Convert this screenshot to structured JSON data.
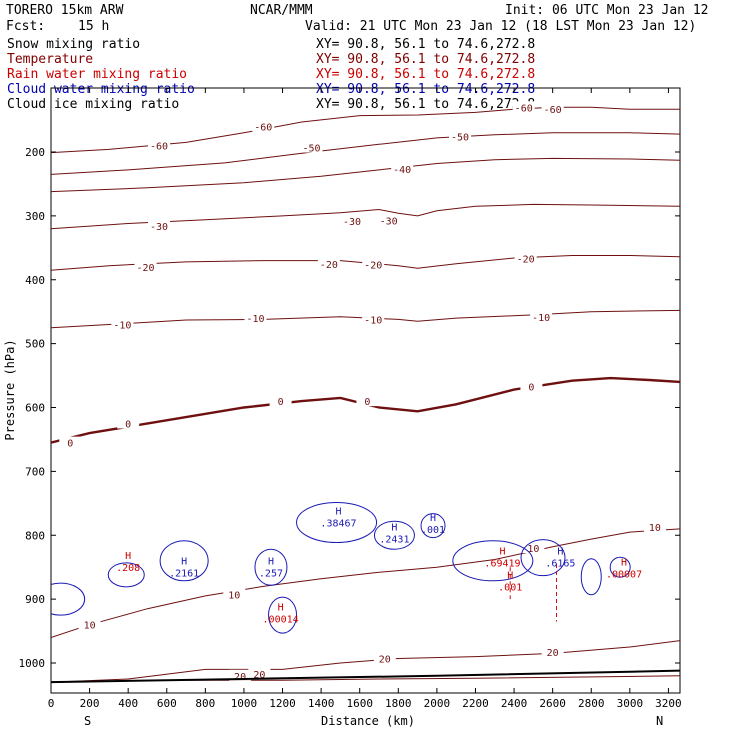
{
  "header": {
    "model": "TORERO  15km ARW",
    "center": "NCAR/MMM",
    "init": "Init: 06 UTC Mon 23 Jan 12",
    "fcst_label": "Fcst:",
    "fcst_value": "15 h",
    "valid": "Valid: 21 UTC Mon 23 Jan 12 (18 LST Mon 23 Jan 12)",
    "cross_section": "XY=  90.8, 56.1 to  74.6,272.8"
  },
  "legend": [
    {
      "name": "Snow mixing ratio",
      "color": "#000000"
    },
    {
      "name": "Temperature",
      "color": "#800000"
    },
    {
      "name": "Rain water mixing ratio",
      "color": "#cc0000"
    },
    {
      "name": "Cloud water mixing ratio",
      "color": "#0000b0"
    },
    {
      "name": "Cloud ice mixing ratio",
      "color": "#000000"
    }
  ],
  "colors": {
    "temperature": "#6e1010",
    "rain": "#d01010",
    "cloud": "#1a1ab4",
    "axis": "#000000"
  },
  "chart_data": {
    "type": "contour-cross-section",
    "title": "TORERO 15km ARW cross section",
    "xlabel": "Distance (km)",
    "ylabel": "Pressure (hPa)",
    "xlim": [
      0,
      3260
    ],
    "ylim": [
      1050,
      100
    ],
    "xticks": [
      0,
      200,
      400,
      600,
      800,
      1000,
      1200,
      1400,
      1600,
      1800,
      2000,
      2200,
      2400,
      2600,
      2800,
      3000,
      3200
    ],
    "yticks": [
      200,
      300,
      400,
      500,
      600,
      700,
      800,
      900,
      1000
    ],
    "x_end_labels": {
      "left": "S",
      "right": "N"
    },
    "temperature_isotherms": [
      {
        "value": -60,
        "points": [
          [
            0,
            201
          ],
          [
            300,
            196
          ],
          [
            700,
            185
          ],
          [
            1000,
            170
          ],
          [
            1300,
            153
          ],
          [
            1600,
            143
          ],
          [
            1900,
            142
          ],
          [
            2200,
            138
          ],
          [
            2400,
            133
          ],
          [
            2600,
            130
          ],
          [
            2800,
            130
          ],
          [
            3000,
            133
          ],
          [
            3260,
            133
          ]
        ],
        "labels": [
          [
            560,
            190,
            "-60"
          ],
          [
            1100,
            160,
            "-60"
          ],
          [
            2450,
            130,
            "-60"
          ],
          [
            2600,
            133,
            "-60"
          ]
        ]
      },
      {
        "value": -50,
        "points": [
          [
            0,
            235
          ],
          [
            400,
            228
          ],
          [
            900,
            217
          ],
          [
            1300,
            202
          ],
          [
            1700,
            188
          ],
          [
            2000,
            178
          ],
          [
            2300,
            173
          ],
          [
            2600,
            170
          ],
          [
            3000,
            170
          ],
          [
            3260,
            172
          ]
        ],
        "labels": [
          [
            1350,
            193,
            "-50"
          ],
          [
            2120,
            176,
            "-50"
          ]
        ]
      },
      {
        "value": -40,
        "points": [
          [
            0,
            262
          ],
          [
            500,
            256
          ],
          [
            1000,
            248
          ],
          [
            1400,
            238
          ],
          [
            1700,
            228
          ],
          [
            2000,
            218
          ],
          [
            2300,
            212
          ],
          [
            2600,
            210
          ],
          [
            3000,
            211
          ],
          [
            3260,
            213
          ]
        ],
        "labels": [
          [
            1820,
            227,
            "-40"
          ]
        ]
      },
      {
        "value": -30,
        "points": [
          [
            0,
            320
          ],
          [
            400,
            312
          ],
          [
            800,
            306
          ],
          [
            1200,
            300
          ],
          [
            1500,
            295
          ],
          [
            1700,
            290
          ],
          [
            1800,
            296
          ],
          [
            1900,
            300
          ],
          [
            2000,
            292
          ],
          [
            2200,
            285
          ],
          [
            2500,
            282
          ],
          [
            2800,
            283
          ],
          [
            3260,
            285
          ]
        ],
        "labels": [
          [
            560,
            316,
            "-30"
          ],
          [
            1560,
            308,
            "-30"
          ],
          [
            1750,
            307,
            "-30"
          ]
        ]
      },
      {
        "value": -20,
        "points": [
          [
            0,
            385
          ],
          [
            300,
            378
          ],
          [
            700,
            372
          ],
          [
            1100,
            370
          ],
          [
            1500,
            370
          ],
          [
            1800,
            378
          ],
          [
            1900,
            382
          ],
          [
            2100,
            375
          ],
          [
            2400,
            366
          ],
          [
            2700,
            362
          ],
          [
            3000,
            362
          ],
          [
            3260,
            364
          ]
        ],
        "labels": [
          [
            490,
            380,
            "-20"
          ],
          [
            1440,
            375,
            "-20"
          ],
          [
            1670,
            376,
            "-20"
          ],
          [
            2460,
            367,
            "-20"
          ]
        ]
      },
      {
        "value": -10,
        "points": [
          [
            0,
            475
          ],
          [
            300,
            470
          ],
          [
            700,
            463
          ],
          [
            1100,
            462
          ],
          [
            1500,
            458
          ],
          [
            1800,
            462
          ],
          [
            1900,
            465
          ],
          [
            2100,
            460
          ],
          [
            2500,
            455
          ],
          [
            2800,
            450
          ],
          [
            3260,
            448
          ]
        ],
        "labels": [
          [
            370,
            470,
            "-10"
          ],
          [
            1060,
            460,
            "-10"
          ],
          [
            1670,
            462,
            "-10"
          ],
          [
            2540,
            458,
            "-10"
          ]
        ]
      },
      {
        "value": 0,
        "bold": true,
        "points": [
          [
            0,
            655
          ],
          [
            200,
            640
          ],
          [
            400,
            630
          ],
          [
            700,
            615
          ],
          [
            1000,
            600
          ],
          [
            1300,
            590
          ],
          [
            1500,
            585
          ],
          [
            1700,
            600
          ],
          [
            1900,
            606
          ],
          [
            2100,
            595
          ],
          [
            2400,
            572
          ],
          [
            2700,
            558
          ],
          [
            2900,
            554
          ],
          [
            3100,
            557
          ],
          [
            3260,
            560
          ]
        ],
        "labels": [
          [
            100,
            655,
            "0"
          ],
          [
            400,
            625,
            "0"
          ],
          [
            1190,
            590,
            "0"
          ],
          [
            1640,
            590,
            "0"
          ],
          [
            2490,
            567,
            "0"
          ]
        ]
      },
      {
        "value": 10,
        "points": [
          [
            0,
            960
          ],
          [
            200,
            940
          ],
          [
            500,
            915
          ],
          [
            800,
            895
          ],
          [
            1100,
            880
          ],
          [
            1400,
            868
          ],
          [
            1700,
            858
          ],
          [
            2000,
            850
          ],
          [
            2300,
            838
          ],
          [
            2600,
            818
          ],
          [
            2800,
            806
          ],
          [
            3000,
            795
          ],
          [
            3260,
            790
          ]
        ],
        "labels": [
          [
            200,
            940,
            "10"
          ],
          [
            950,
            893,
            "10"
          ],
          [
            2500,
            820,
            "10"
          ],
          [
            3130,
            787,
            "10"
          ]
        ]
      },
      {
        "value": 20,
        "points": [
          [
            0,
            1030
          ],
          [
            400,
            1025
          ],
          [
            800,
            1010
          ],
          [
            1200,
            1010
          ],
          [
            1500,
            1000
          ],
          [
            1800,
            993
          ],
          [
            2200,
            990
          ],
          [
            2600,
            985
          ],
          [
            3000,
            975
          ],
          [
            3260,
            965
          ]
        ],
        "labels": [
          [
            1730,
            993,
            "20"
          ],
          [
            2600,
            983,
            "20"
          ]
        ]
      },
      {
        "value": 20,
        "points": [
          [
            700,
            1027
          ],
          [
            1200,
            1027
          ],
          [
            1700,
            1025
          ],
          [
            2200,
            1024
          ],
          [
            3260,
            1020
          ]
        ],
        "labels": [
          [
            980,
            1020,
            "20"
          ],
          [
            1080,
            1017,
            "20"
          ]
        ]
      }
    ],
    "cloud_max_labels": [
      {
        "x": 400,
        "p": 850,
        "text": ".208",
        "color": "#cc0000"
      },
      {
        "x": 690,
        "p": 858,
        "text": ".2161",
        "color": "#1a1ab4"
      },
      {
        "x": 1140,
        "p": 858,
        "text": ".257",
        "color": "#1a1ab4"
      },
      {
        "x": 1490,
        "p": 780,
        "text": ".38467",
        "color": "#1a1ab4"
      },
      {
        "x": 1780,
        "p": 805,
        "text": ".2431",
        "color": "#1a1ab4"
      },
      {
        "x": 1980,
        "p": 790,
        "text": ".001",
        "color": "#1a1ab4"
      },
      {
        "x": 2340,
        "p": 843,
        "text": ".69419",
        "color": "#cc0000"
      },
      {
        "x": 2640,
        "p": 843,
        "text": ".6165",
        "color": "#1a1ab4"
      },
      {
        "x": 2970,
        "p": 860,
        "text": ".00007",
        "color": "#cc0000"
      },
      {
        "x": 1190,
        "p": 930,
        "text": ".00014",
        "color": "#cc0000"
      },
      {
        "x": 2380,
        "p": 880,
        "text": ".001",
        "color": "#cc0000"
      }
    ],
    "ground_level": {
      "points": [
        [
          0,
          1030
        ],
        [
          1000,
          1025
        ],
        [
          2000,
          1020
        ],
        [
          3260,
          1012
        ]
      ]
    }
  }
}
